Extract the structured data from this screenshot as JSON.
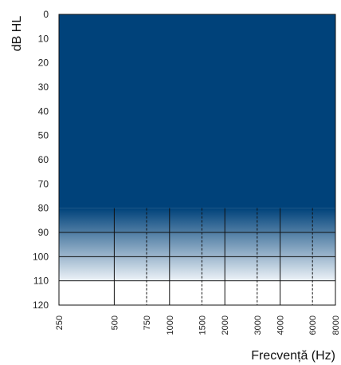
{
  "chart_data": {
    "type": "area",
    "title": "",
    "ylabel": "dB HL",
    "xlabel": "Frecvență (Hz)",
    "y_ticks": [
      0,
      10,
      20,
      30,
      40,
      50,
      60,
      70,
      80,
      90,
      100,
      110,
      120
    ],
    "ylim": [
      0,
      120
    ],
    "y_inverted": true,
    "x_ticks": [
      "250",
      "500",
      "750",
      "1000",
      "1500",
      "2000",
      "3000",
      "4000",
      "6000",
      "8000"
    ],
    "x_scale": "log",
    "octave_frequencies": [
      "250",
      "500",
      "1000",
      "2000",
      "4000",
      "8000"
    ],
    "inter_octave_frequencies": [
      "750",
      "1500",
      "3000",
      "6000"
    ],
    "shaded_region": {
      "from_db": 0,
      "to_db": 80,
      "fade_to_db": 110,
      "color": "#00427a"
    },
    "grid": true
  },
  "colors": {
    "fill": "#00427a",
    "fade_end": "#eef3f8",
    "grid": "#111111"
  }
}
